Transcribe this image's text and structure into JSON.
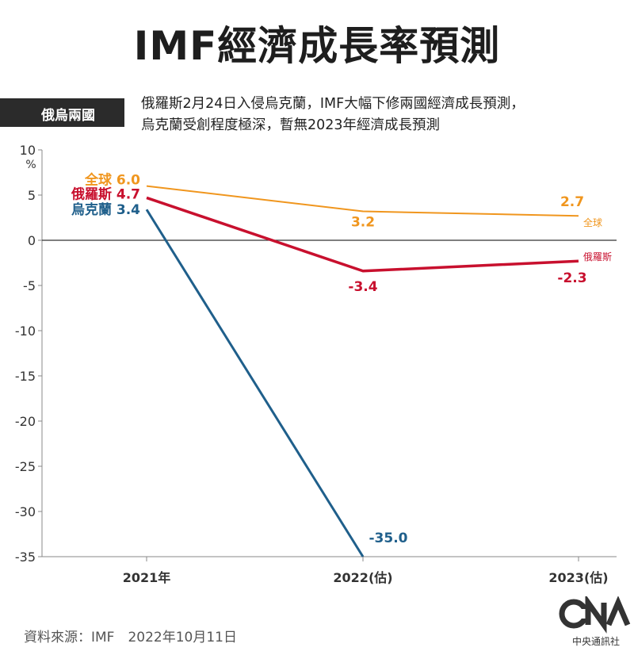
{
  "header": {
    "title": "IMF經濟成長率預測",
    "tag": "俄烏兩國",
    "subtitle_lines": [
      "俄羅斯2月24日入侵烏克蘭，IMF大幅下修兩國經濟成長預測，",
      "烏克蘭受創程度極深，暫無2023年經濟成長預測"
    ]
  },
  "footer": {
    "source": "資料來源：IMF　2022年10月11日",
    "logo_text": "中央通訊社"
  },
  "chart_data": {
    "type": "line",
    "title": "IMF經濟成長率預測",
    "ylabel": "%",
    "ylim": [
      -35,
      10
    ],
    "yticks": [
      10,
      5,
      0,
      -5,
      -10,
      -15,
      -20,
      -25,
      -30,
      -35
    ],
    "categories": [
      "2021年",
      "2022(估)",
      "2023(估)"
    ],
    "grid": false,
    "series": [
      {
        "name": "全球",
        "color": "#f0961e",
        "values": [
          6.0,
          3.2,
          2.7
        ],
        "labels": [
          "6.0",
          "3.2",
          "2.7"
        ],
        "end_label": "全球"
      },
      {
        "name": "俄羅斯",
        "color": "#c8102e",
        "values": [
          4.7,
          -3.4,
          -2.3
        ],
        "labels": [
          "4.7",
          "-3.4",
          "-2.3"
        ],
        "end_label": "俄羅斯"
      },
      {
        "name": "烏克蘭",
        "color": "#1f5f8b",
        "values": [
          3.4,
          -35.0,
          null
        ],
        "labels": [
          "3.4",
          "-35.0",
          ""
        ],
        "end_label": ""
      }
    ]
  }
}
